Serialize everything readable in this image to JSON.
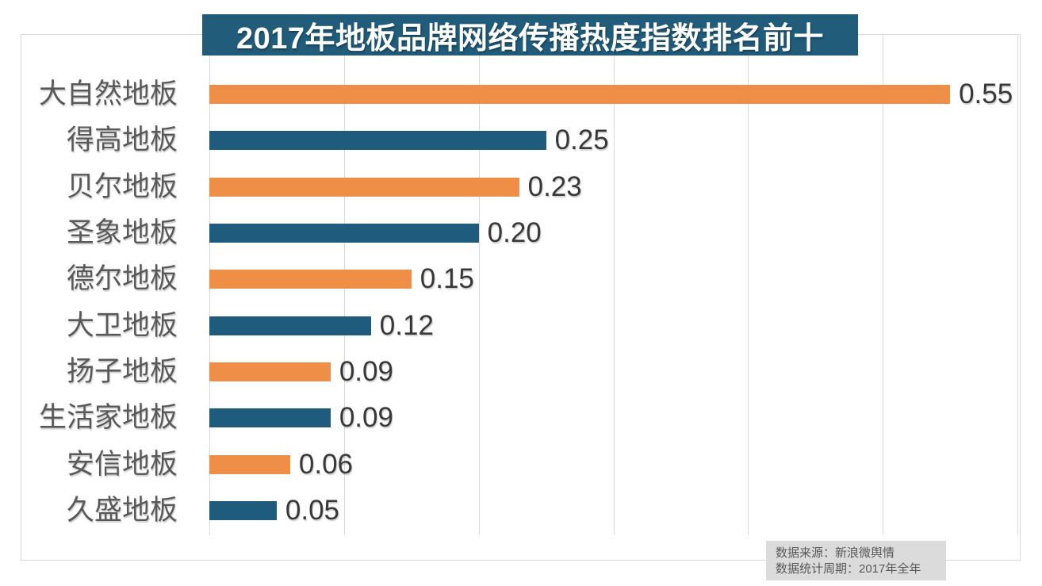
{
  "chart_data": {
    "type": "bar",
    "orientation": "horizontal",
    "title": "2017年地板品牌网络传播热度指数排名前十",
    "categories": [
      "大自然地板",
      "得高地板",
      "贝尔地板",
      "圣象地板",
      "德尔地板",
      "大卫地板",
      "扬子地板",
      "生活家地板",
      "安信地板",
      "久盛地板"
    ],
    "values": [
      0.55,
      0.25,
      0.23,
      0.2,
      0.15,
      0.12,
      0.09,
      0.09,
      0.06,
      0.05
    ],
    "value_labels": [
      "0.55",
      "0.25",
      "0.23",
      "0.20",
      "0.15",
      "0.12",
      "0.09",
      "0.09",
      "0.06",
      "0.05"
    ],
    "xlim": [
      0,
      0.6
    ],
    "grid_step": 0.1,
    "grid": true,
    "tick_labels_visible": false,
    "legend": "none",
    "bar_colors_alternating": [
      "#EF8E46",
      "#1E5B7D"
    ]
  },
  "source": {
    "line1": "数据来源：新浪微舆情",
    "line2": "数据统计周期：2017年全年"
  },
  "colors": {
    "accent_orange": "#EF8E46",
    "accent_blue": "#1E5B7D",
    "title_bg": "#215C7B",
    "title_text": "#FFFFFF",
    "gridline": "#D9D9D9",
    "category_text": "#595959",
    "value_text": "#383838",
    "source_bg": "#DBDBDB",
    "source_text": "#595959",
    "background": "#FFFFFF"
  }
}
